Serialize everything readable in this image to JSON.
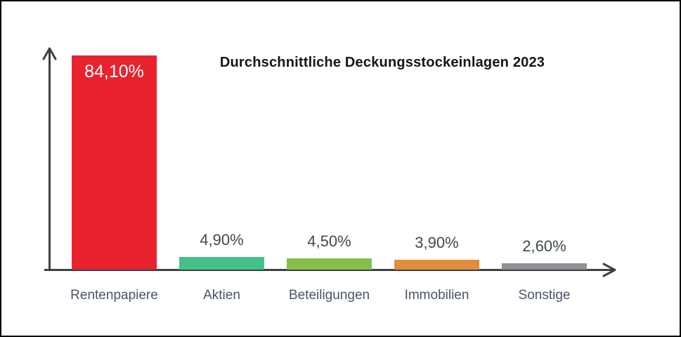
{
  "page": {
    "background_color": "#ffffff",
    "border_color": "#000000"
  },
  "chart_data": {
    "type": "bar",
    "title": "Durchschnittliche Deckungsstockeinlagen 2023",
    "categories": [
      "Rentenpapiere",
      "Aktien",
      "Beteiligungen",
      "Immobilien",
      "Sonstige"
    ],
    "values": [
      84.1,
      4.9,
      4.5,
      3.9,
      2.6
    ],
    "value_labels": [
      "84,10%",
      "4,90%",
      "4,50%",
      "3,90%",
      "2,60%"
    ],
    "bar_colors": [
      "#e8232e",
      "#44c08b",
      "#85c04b",
      "#e08d3e",
      "#8e9296"
    ],
    "xlabel": "",
    "ylabel": "",
    "ylim": [
      0,
      100
    ],
    "grid": false,
    "legend": "none",
    "axis_color": "#3d4145",
    "title_color": "#161616",
    "value_label_color": "#3f4a4e",
    "value_label_inside_color": "#ffffff",
    "category_label_color": "#4a5568"
  }
}
